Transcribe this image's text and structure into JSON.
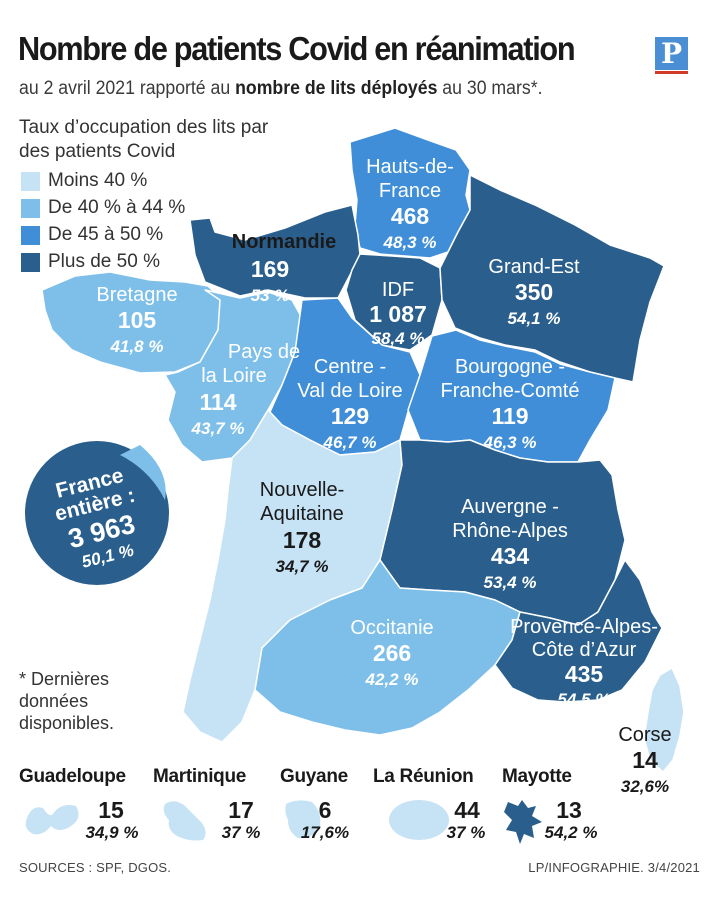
{
  "header": {
    "title": "Nombre de patients Covid en réanimation",
    "subtitle_pre": "au 2 avril 2021 rapporté au ",
    "subtitle_bold": "nombre de lits déployés",
    "subtitle_post": " au 30 mars*.",
    "logo_letter": "P"
  },
  "legend": {
    "title": "Taux d’occupation des lits par des patients Covid",
    "items": [
      {
        "label": "Moins 40 %",
        "color": "#c6e2f5"
      },
      {
        "label": "De 40 % à 44 %",
        "color": "#7ebfea"
      },
      {
        "label": "De 45 à 50 %",
        "color": "#3f8ed7"
      },
      {
        "label": "Plus de 50 %",
        "color": "#2a5f8d"
      }
    ]
  },
  "colors": {
    "lt40": "#c6e2f5",
    "r40_44": "#7ebfea",
    "r45_50": "#3f8ed7",
    "gt50": "#2a5f8d",
    "logo_blue": "#4a8fd4",
    "logo_red": "#d23a2a"
  },
  "regions": {
    "hauts_de_france": {
      "name1": "Hauts-de-",
      "name2": "France",
      "value": "468",
      "pct": "48,3 %"
    },
    "normandie": {
      "name1": "Normandie",
      "value": "169",
      "pct": "53 %"
    },
    "idf": {
      "name1": "IDF",
      "value": "1 087",
      "pct": "58,4 %"
    },
    "grand_est": {
      "name1": "Grand-Est",
      "value": "350",
      "pct": "54,1 %"
    },
    "bretagne": {
      "name1": "Bretagne",
      "value": "105",
      "pct": "41,8 %"
    },
    "pays_de_la_loire": {
      "name1": "Pays de",
      "name2": "la Loire",
      "value": "114",
      "pct": "43,7 %"
    },
    "centre_val_de_loire": {
      "name1": "Centre -",
      "name2": "Val de Loire",
      "value": "129",
      "pct": "46,7 %"
    },
    "bourgogne_franche_comte": {
      "name1": "Bourgogne -",
      "name2": "Franche-Comté",
      "value": "119",
      "pct": "46,3 %"
    },
    "nouvelle_aquitaine": {
      "name1": "Nouvelle-",
      "name2": "Aquitaine",
      "value": "178",
      "pct": "34,7 %"
    },
    "auvergne_rhone_alpes": {
      "name1": "Auvergne -",
      "name2": "Rhône-Alpes",
      "value": "434",
      "pct": "53,4 %"
    },
    "occitanie": {
      "name1": "Occitanie",
      "value": "266",
      "pct": "42,2 %"
    },
    "paca": {
      "name1": "Provence-Alpes-",
      "name2": "Côte d’Azur",
      "value": "435",
      "pct": "54,5 %"
    },
    "corse": {
      "name1": "Corse",
      "value": "14",
      "pct": "32,6%"
    }
  },
  "france": {
    "label1": "France",
    "label2": "entière :",
    "value": "3 963",
    "pct": "50,1 %"
  },
  "footnote": "* Dernières données disponibles.",
  "overseas": [
    {
      "name": "Guadeloupe",
      "value": "15",
      "pct": "34,9 %"
    },
    {
      "name": "Martinique",
      "value": "17",
      "pct": "37 %"
    },
    {
      "name": "Guyane",
      "value": "6",
      "pct": "17,6%"
    },
    {
      "name": "La Réunion",
      "value": "44",
      "pct": "37 %"
    },
    {
      "name": "Mayotte",
      "value": "13",
      "pct": "54,2 %"
    }
  ],
  "sources": "SOURCES : SPF, DGOS.",
  "credit": "LP/INFOGRAPHIE.  3/4/2021"
}
